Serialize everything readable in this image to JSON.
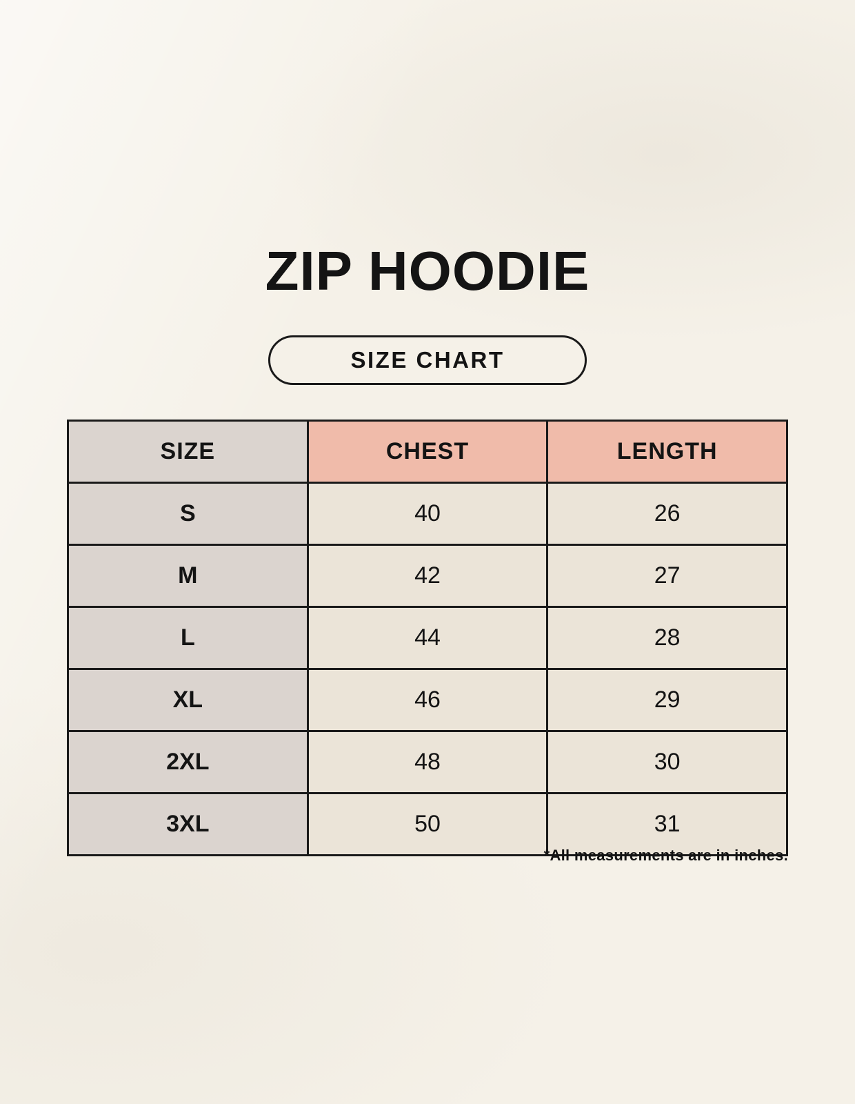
{
  "page": {
    "title": "ZIP HOODIE",
    "size_chart_label": "SIZE CHART",
    "footnote": "*All measurements are in inches."
  },
  "table": {
    "columns": [
      "SIZE",
      "CHEST",
      "LENGTH"
    ],
    "rows": [
      {
        "size": "S",
        "chest": "40",
        "length": "26"
      },
      {
        "size": "M",
        "chest": "42",
        "length": "27"
      },
      {
        "size": "L",
        "chest": "44",
        "length": "28"
      },
      {
        "size": "XL",
        "chest": "46",
        "length": "29"
      },
      {
        "size": "2XL",
        "chest": "48",
        "length": "30"
      },
      {
        "size": "3XL",
        "chest": "50",
        "length": "31"
      }
    ]
  },
  "colors": {
    "background": "#f5f1e8",
    "header_label_bg": "#dbd4cf",
    "header_accent_bg": "#f0bbaa",
    "size_col_bg": "#dbd4cf",
    "value_cell_bg": "#ebe4d8",
    "border": "#1a1a1a",
    "text": "#141414"
  },
  "chart_data": {
    "type": "table",
    "title": "ZIP HOODIE",
    "subtitle": "SIZE CHART",
    "columns": [
      "SIZE",
      "CHEST",
      "LENGTH"
    ],
    "rows": [
      [
        "S",
        40,
        26
      ],
      [
        "M",
        42,
        27
      ],
      [
        "L",
        44,
        28
      ],
      [
        "XL",
        46,
        29
      ],
      [
        "2XL",
        48,
        30
      ],
      [
        "3XL",
        50,
        31
      ]
    ],
    "note": "*All measurements are in inches."
  }
}
